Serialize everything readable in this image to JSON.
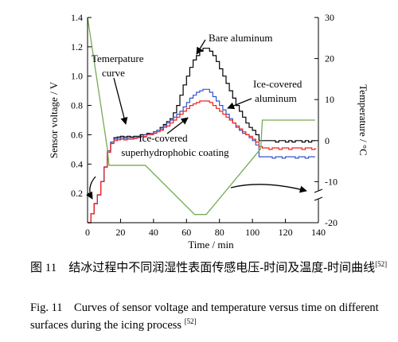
{
  "chart_data": {
    "type": "line",
    "title": "",
    "xlabel": "Time / min",
    "ylabel": "Sensor voltage / V",
    "y2label": "Temperature / °C",
    "xlim": [
      0,
      140
    ],
    "ylim": [
      0,
      1.4
    ],
    "y2lim": [
      -20,
      30
    ],
    "x_ticks": [
      0,
      20,
      40,
      60,
      80,
      100,
      120,
      140
    ],
    "y_ticks": [
      0.2,
      0.4,
      0.6,
      0.8,
      1.0,
      1.2,
      1.4
    ],
    "y2_ticks": [
      -20,
      -10,
      0,
      10,
      20,
      30
    ],
    "y_tick_labels": [
      "0.2",
      "0.4",
      "0.6",
      "0.8",
      "1.0",
      "1.2",
      "1.4"
    ],
    "x_tick_labels": [
      "0",
      "20",
      "40",
      "60",
      "80",
      "100",
      "120",
      "140"
    ],
    "y2_tick_labels": [
      "-20",
      "-10",
      "0",
      "10",
      "20",
      "30"
    ],
    "axis_break_on_right": true,
    "grid": false,
    "series": [
      {
        "name": "Bare aluminum",
        "axis": "left",
        "color": "#000000",
        "x": [
          0,
          2,
          4,
          6,
          8,
          10,
          12,
          14,
          16,
          18,
          20,
          22,
          24,
          26,
          28,
          30,
          32,
          34,
          36,
          38,
          40,
          42,
          44,
          46,
          48,
          50,
          52,
          54,
          56,
          58,
          60,
          62,
          64,
          66,
          68,
          70,
          72,
          74,
          76,
          78,
          80,
          82,
          84,
          86,
          88,
          90,
          92,
          94,
          96,
          98,
          100,
          102,
          104,
          106,
          108,
          110,
          112,
          114,
          116,
          118,
          120,
          122,
          124,
          126,
          128,
          130,
          132,
          134,
          136,
          138
        ],
        "y": [
          0.0,
          0.06,
          0.13,
          0.19,
          0.28,
          0.38,
          0.49,
          0.55,
          0.58,
          0.585,
          0.59,
          0.585,
          0.59,
          0.585,
          0.59,
          0.59,
          0.6,
          0.6,
          0.61,
          0.61,
          0.62,
          0.63,
          0.65,
          0.67,
          0.69,
          0.71,
          0.75,
          0.8,
          0.87,
          0.94,
          1.0,
          1.06,
          1.11,
          1.14,
          1.17,
          1.19,
          1.19,
          1.17,
          1.14,
          1.1,
          1.05,
          1.0,
          0.95,
          0.9,
          0.85,
          0.8,
          0.76,
          0.72,
          0.68,
          0.65,
          0.63,
          0.6,
          0.56,
          0.56,
          0.56,
          0.56,
          0.56,
          0.55,
          0.56,
          0.56,
          0.55,
          0.56,
          0.55,
          0.56,
          0.56,
          0.55,
          0.56,
          0.55,
          0.56,
          0.56
        ]
      },
      {
        "name": "Ice-covered aluminum",
        "axis": "left",
        "color": "#3355cc",
        "x": [
          0,
          2,
          4,
          6,
          8,
          10,
          12,
          14,
          16,
          18,
          20,
          22,
          24,
          26,
          28,
          30,
          32,
          34,
          36,
          38,
          40,
          42,
          44,
          46,
          48,
          50,
          52,
          54,
          56,
          58,
          60,
          62,
          64,
          66,
          68,
          70,
          72,
          74,
          76,
          78,
          80,
          82,
          84,
          86,
          88,
          90,
          92,
          94,
          96,
          98,
          100,
          102,
          104,
          106,
          108,
          110,
          112,
          114,
          116,
          118,
          120,
          122,
          124,
          126,
          128,
          130,
          132,
          134,
          136,
          138
        ],
        "y": [
          0.0,
          0.06,
          0.13,
          0.19,
          0.28,
          0.38,
          0.49,
          0.55,
          0.57,
          0.575,
          0.58,
          0.575,
          0.58,
          0.58,
          0.58,
          0.585,
          0.59,
          0.6,
          0.6,
          0.61,
          0.62,
          0.63,
          0.64,
          0.66,
          0.68,
          0.7,
          0.72,
          0.74,
          0.76,
          0.79,
          0.82,
          0.85,
          0.87,
          0.89,
          0.9,
          0.91,
          0.91,
          0.89,
          0.86,
          0.83,
          0.8,
          0.77,
          0.74,
          0.71,
          0.68,
          0.65,
          0.63,
          0.61,
          0.6,
          0.58,
          0.56,
          0.53,
          0.45,
          0.45,
          0.45,
          0.45,
          0.44,
          0.45,
          0.45,
          0.44,
          0.45,
          0.45,
          0.45,
          0.44,
          0.45,
          0.45,
          0.44,
          0.45,
          0.45,
          0.45
        ]
      },
      {
        "name": "Ice-covered superhydrophobic coating",
        "axis": "left",
        "color": "#ee2222",
        "x": [
          0,
          2,
          4,
          6,
          8,
          10,
          12,
          14,
          16,
          18,
          20,
          22,
          24,
          26,
          28,
          30,
          32,
          34,
          36,
          38,
          40,
          42,
          44,
          46,
          48,
          50,
          52,
          54,
          56,
          58,
          60,
          62,
          64,
          66,
          68,
          70,
          72,
          74,
          76,
          78,
          80,
          82,
          84,
          86,
          88,
          90,
          92,
          94,
          96,
          98,
          100,
          102,
          104,
          106,
          108,
          110,
          112,
          114,
          116,
          118,
          120,
          122,
          124,
          126,
          128,
          130,
          132,
          134,
          136,
          138
        ],
        "y": [
          0.0,
          0.06,
          0.13,
          0.19,
          0.28,
          0.38,
          0.48,
          0.54,
          0.56,
          0.565,
          0.57,
          0.565,
          0.57,
          0.57,
          0.575,
          0.58,
          0.585,
          0.59,
          0.6,
          0.6,
          0.61,
          0.62,
          0.63,
          0.65,
          0.66,
          0.68,
          0.7,
          0.72,
          0.74,
          0.76,
          0.78,
          0.8,
          0.81,
          0.82,
          0.83,
          0.83,
          0.83,
          0.82,
          0.8,
          0.78,
          0.76,
          0.74,
          0.72,
          0.7,
          0.68,
          0.66,
          0.64,
          0.62,
          0.6,
          0.59,
          0.57,
          0.55,
          0.52,
          0.51,
          0.51,
          0.5,
          0.51,
          0.51,
          0.5,
          0.51,
          0.51,
          0.5,
          0.51,
          0.51,
          0.51,
          0.5,
          0.51,
          0.51,
          0.5,
          0.51
        ]
      },
      {
        "name": "Temerpature curve",
        "axis": "right",
        "color": "#77aa55",
        "x": [
          0,
          12,
          13,
          35,
          65,
          68,
          72,
          105,
          106,
          138
        ],
        "y": [
          30,
          -2,
          -6,
          -6,
          -18,
          -18,
          -18,
          -2,
          5,
          5
        ]
      }
    ],
    "annotations": [
      "Bare aluminum",
      "Ice-covered",
      "aluminum",
      "Ice-covered",
      "superhydrophobic coating",
      "Temerpature",
      "curve"
    ]
  },
  "caption": {
    "cn": "图 11　结冰过程中不同润湿性表面传感电压-时间及温度-时间曲线",
    "cn_ref": "[52]",
    "en": "Fig. 11　Curves of sensor voltage and temperature versus time on different surfaces during the icing process",
    "en_ref": "[52]"
  }
}
